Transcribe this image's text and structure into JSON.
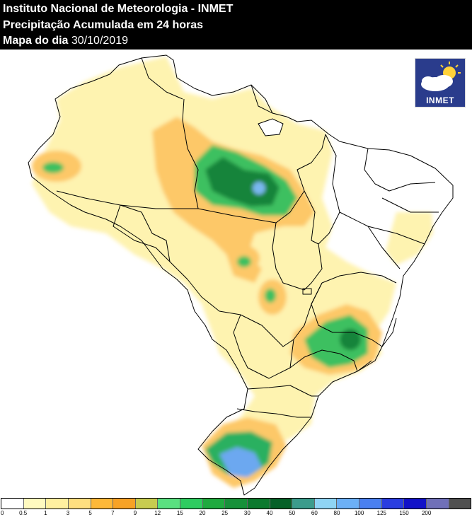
{
  "header": {
    "title": "Instituto Nacional de Meteorologia - INMET",
    "subtitle": "Precipitação Acumulada em 24 horas",
    "date_prefix": "Mapa do dia",
    "date": "30/10/2019"
  },
  "logo": {
    "text": "INMET",
    "icon": "sun-cloud-icon"
  },
  "legend": {
    "colors": [
      "#ffffff",
      "#fffac0",
      "#fff0a0",
      "#fedf80",
      "#fdb838",
      "#f7a226",
      "#c8cc50",
      "#5ae080",
      "#2ecc60",
      "#1faa3f",
      "#17913a",
      "#0c7a2e",
      "#066128",
      "#3c9c8c",
      "#8fd4f4",
      "#6cb0f6",
      "#4a80f0",
      "#2a3ee0",
      "#1212c8",
      "#7070b8",
      "#505050"
    ],
    "labels": [
      "0",
      "0.5",
      "1",
      "3",
      "5",
      "7",
      "9",
      "12",
      "15",
      "20",
      "25",
      "30",
      "40",
      "50",
      "60",
      "80",
      "100",
      "125",
      "150",
      "200"
    ]
  }
}
